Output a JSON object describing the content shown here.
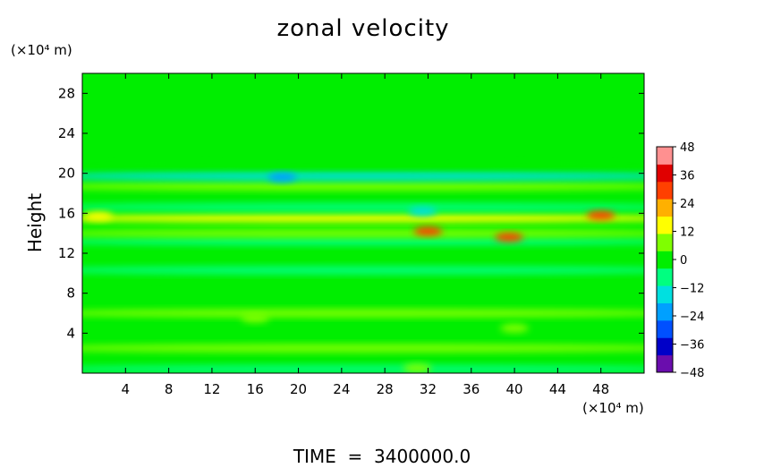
{
  "chart_data": {
    "type": "heatmap",
    "title": "zonal velocity",
    "footer": "TIME  =  3400000.0",
    "ylabel": "Height",
    "xunit": "(×10⁴ m)",
    "yunit": "(×10⁴ m)",
    "xlim": [
      0,
      52
    ],
    "ylim": [
      0,
      30
    ],
    "x_ticks": [
      4,
      8,
      12,
      16,
      20,
      24,
      28,
      32,
      36,
      40,
      44,
      48
    ],
    "y_ticks": [
      4,
      8,
      12,
      16,
      20,
      24,
      28
    ],
    "colorbar": {
      "min": -48,
      "max": 48,
      "ticks": [
        48,
        36,
        24,
        12,
        0,
        -12,
        -24,
        -36,
        -48
      ],
      "tick_labels": [
        "48",
        "36",
        "24",
        "12",
        "0",
        "−12",
        "−24",
        "−36",
        "−48"
      ],
      "colors": [
        "#6a0dad",
        "#0000c8",
        "#0050ff",
        "#00a0ff",
        "#00e0e0",
        "#00ff80",
        "#00ee00",
        "#7fff00",
        "#ffff00",
        "#ffb000",
        "#ff4000",
        "#e00000",
        "#ff9090"
      ]
    },
    "bands": [
      {
        "y": 0.4,
        "value": -6
      },
      {
        "y": 2.5,
        "value": 6
      },
      {
        "y": 6.0,
        "value": 5
      },
      {
        "y": 9.5,
        "value": -2
      },
      {
        "y": 10.3,
        "value": -5
      },
      {
        "y": 13.2,
        "value": -10
      },
      {
        "y": 14.0,
        "value": 10
      },
      {
        "y": 15.5,
        "value": 13
      },
      {
        "y": 16.6,
        "value": -9
      },
      {
        "y": 18.7,
        "value": 8
      },
      {
        "y": 19.7,
        "value": -16
      },
      {
        "y": 21.0,
        "value": 2
      }
    ],
    "blobs": [
      {
        "x": 32.0,
        "y": 14.2,
        "value": 30
      },
      {
        "x": 39.5,
        "y": 13.6,
        "value": 28
      },
      {
        "x": 48.0,
        "y": 15.8,
        "value": 26
      },
      {
        "x": 1.5,
        "y": 15.7,
        "value": 18
      },
      {
        "x": 16.0,
        "y": 5.5,
        "value": 9
      },
      {
        "x": 40.0,
        "y": 4.5,
        "value": 9
      },
      {
        "x": 31.0,
        "y": 0.5,
        "value": 10
      },
      {
        "x": 18.5,
        "y": 19.6,
        "value": -22
      },
      {
        "x": 31.5,
        "y": 16.2,
        "value": -14
      }
    ]
  }
}
